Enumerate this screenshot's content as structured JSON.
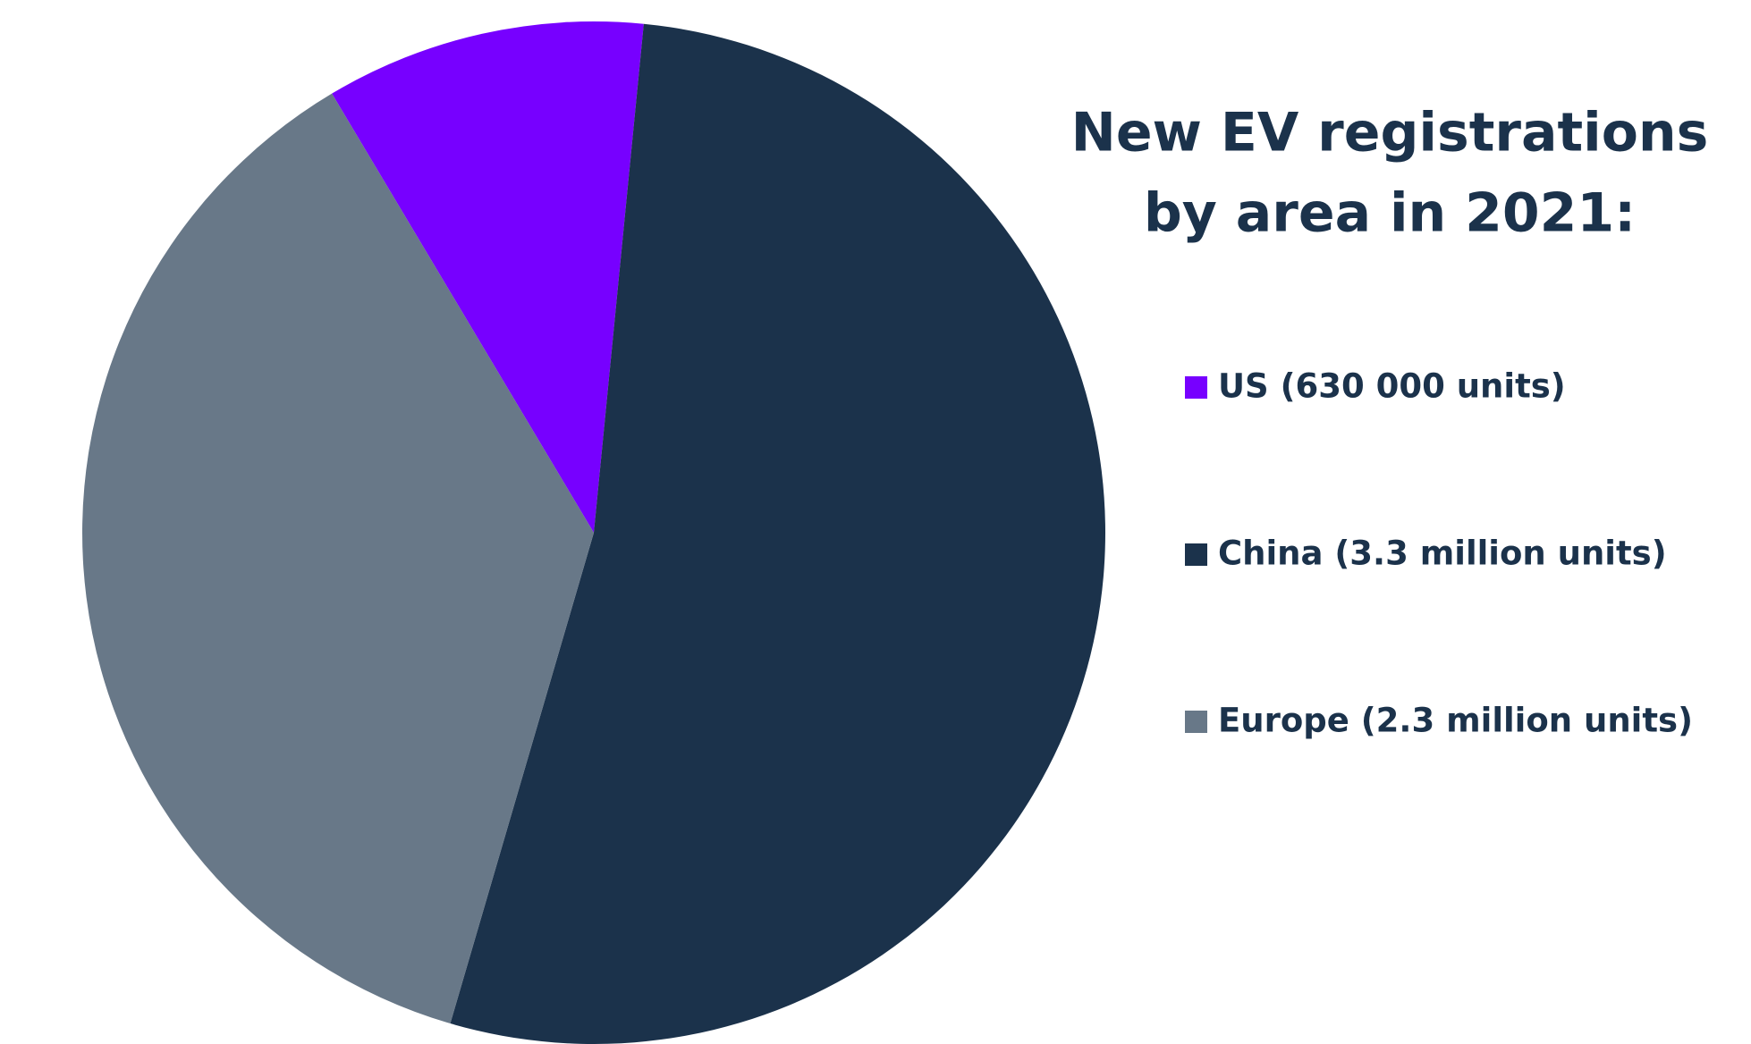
{
  "chart_data": {
    "type": "pie",
    "title": [
      "New EV registrations",
      "by area in 2021:"
    ],
    "categories": [
      "US (630 000 units)",
      "China (3.3 million units)",
      "Europe (2.3 million units)"
    ],
    "values": [
      630000,
      3300000,
      2300000
    ],
    "colors": [
      "#7700ff",
      "#1b324b",
      "#687888"
    ],
    "legend": "right"
  }
}
